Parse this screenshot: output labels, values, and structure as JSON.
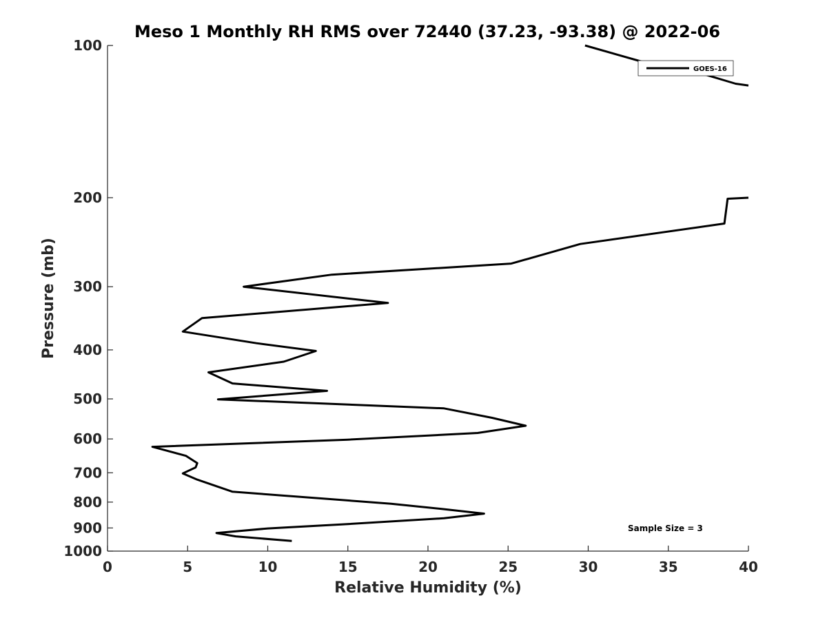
{
  "chart_data": {
    "type": "line",
    "title": "Meso 1 Monthly RH RMS over 72440 (37.23, -93.38) @ 2022-06",
    "xlabel": "Relative Humidity (%)",
    "ylabel": "Pressure (mb)",
    "xlim": [
      0,
      40
    ],
    "ylim": [
      100,
      1000
    ],
    "y_scale": "log",
    "y_direction": "reversed",
    "x_ticks": [
      "0",
      "5",
      "10",
      "15",
      "20",
      "25",
      "30",
      "35",
      "40"
    ],
    "y_ticks": [
      "100",
      "200",
      "300",
      "400",
      "500",
      "600",
      "700",
      "800",
      "900",
      "1000"
    ],
    "grid": false,
    "legend_position": "top-right",
    "annotation": "Sample Size = 3",
    "series": [
      {
        "name": "GOES-16",
        "color": "#000000",
        "segments": [
          [
            {
              "x": 29.8,
              "y": 100
            },
            {
              "x": 33.5,
              "y": 108
            },
            {
              "x": 36.0,
              "y": 111
            },
            {
              "x": 39.2,
              "y": 119
            },
            {
              "x": 40.0,
              "y": 120
            }
          ],
          [
            {
              "x": 40.0,
              "y": 200
            },
            {
              "x": 38.7,
              "y": 201
            },
            {
              "x": 38.5,
              "y": 225
            },
            {
              "x": 29.5,
              "y": 247
            },
            {
              "x": 25.2,
              "y": 270
            },
            {
              "x": 14.0,
              "y": 284
            },
            {
              "x": 8.5,
              "y": 300
            },
            {
              "x": 17.5,
              "y": 323
            },
            {
              "x": 5.9,
              "y": 346
            },
            {
              "x": 4.7,
              "y": 368
            },
            {
              "x": 9.3,
              "y": 388
            },
            {
              "x": 13.0,
              "y": 402
            },
            {
              "x": 11.0,
              "y": 422
            },
            {
              "x": 6.3,
              "y": 443
            },
            {
              "x": 7.8,
              "y": 466
            },
            {
              "x": 13.7,
              "y": 482
            },
            {
              "x": 6.9,
              "y": 501
            },
            {
              "x": 21.0,
              "y": 522
            },
            {
              "x": 24.0,
              "y": 545
            },
            {
              "x": 26.1,
              "y": 565
            },
            {
              "x": 23.1,
              "y": 584
            },
            {
              "x": 15.0,
              "y": 602
            },
            {
              "x": 2.8,
              "y": 622
            },
            {
              "x": 4.9,
              "y": 648
            },
            {
              "x": 5.6,
              "y": 670
            },
            {
              "x": 5.5,
              "y": 683
            },
            {
              "x": 4.7,
              "y": 702
            },
            {
              "x": 5.6,
              "y": 722
            },
            {
              "x": 7.8,
              "y": 763
            },
            {
              "x": 17.7,
              "y": 806
            },
            {
              "x": 21.0,
              "y": 826
            },
            {
              "x": 23.5,
              "y": 843
            },
            {
              "x": 21.0,
              "y": 861
            },
            {
              "x": 15.0,
              "y": 884
            },
            {
              "x": 10.0,
              "y": 902
            },
            {
              "x": 6.8,
              "y": 921
            },
            {
              "x": 8.0,
              "y": 935
            },
            {
              "x": 11.5,
              "y": 955
            }
          ]
        ]
      }
    ]
  }
}
